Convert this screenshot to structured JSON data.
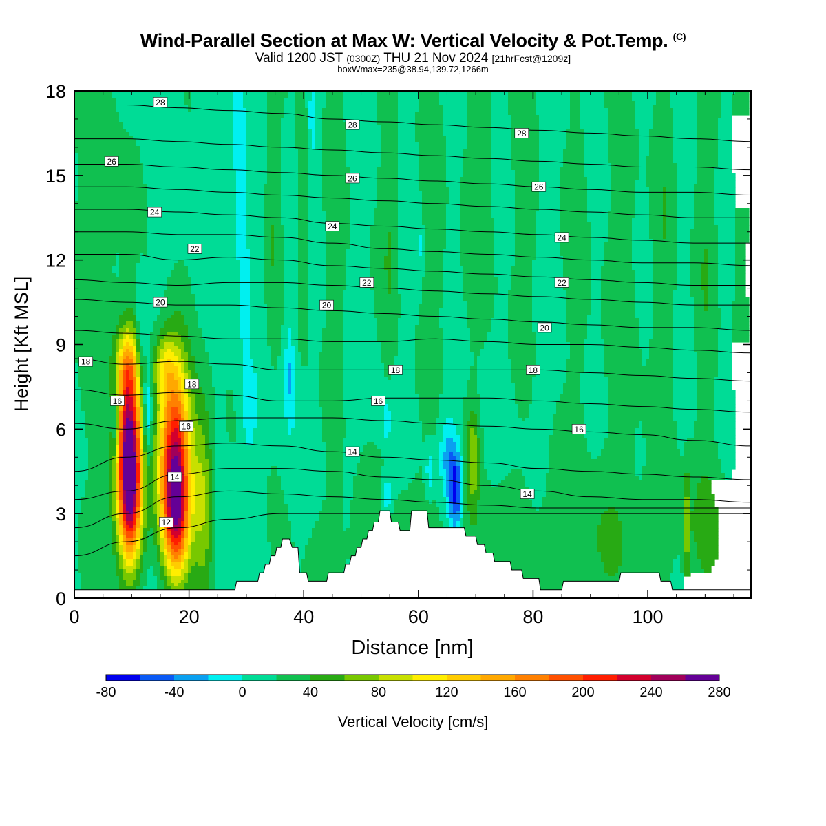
{
  "header": {
    "title": "Wind-Parallel Section at Max W: Vertical Velocity & Pot.Temp.",
    "title_mark": "(C)",
    "subtitle_a": "Valid 1200 JST",
    "subtitle_b": "(0300Z)",
    "subtitle_c": "THU 21 Nov 2024",
    "subtitle_d": "[21hrFcst@1209z]",
    "box_info": "boxWmax=235@38.94,139.72,1266m"
  },
  "chart_data": {
    "type": "heatmap",
    "xlabel": "Distance [nm]",
    "ylabel": "Height [Kft MSL]",
    "xlim": [
      0,
      118
    ],
    "ylim": [
      0,
      18
    ],
    "x_ticks": [
      0,
      20,
      40,
      60,
      80,
      100
    ],
    "y_ticks": [
      0,
      3,
      6,
      9,
      12,
      15,
      18
    ],
    "colorbar": {
      "label": "Vertical Velocity [cm/s]",
      "bounds": [
        -80,
        -60,
        -40,
        -20,
        0,
        20,
        40,
        60,
        80,
        100,
        120,
        140,
        160,
        180,
        200,
        220,
        240,
        260,
        280
      ],
      "tick_labels": [
        "-80",
        "-40",
        "0",
        "40",
        "80",
        "120",
        "160",
        "200",
        "240",
        "280"
      ],
      "colors": [
        "#0000ee",
        "#0a5af5",
        "#0aa0f0",
        "#00f0f0",
        "#00dc96",
        "#10c050",
        "#28aa14",
        "#78c800",
        "#c8e000",
        "#ffee00",
        "#ffcc00",
        "#ffa800",
        "#ff8000",
        "#ff5000",
        "#ff1e00",
        "#d2002d",
        "#a0005a",
        "#640096"
      ]
    },
    "terrain_kft": [
      [
        0,
        0.3
      ],
      [
        28,
        0.3
      ],
      [
        28.3,
        0.6
      ],
      [
        32,
        0.6
      ],
      [
        32.3,
        0.9
      ],
      [
        33,
        0.9
      ],
      [
        33.3,
        1.2
      ],
      [
        34,
        1.2
      ],
      [
        34.3,
        1.5
      ],
      [
        35,
        1.5
      ],
      [
        35.3,
        1.8
      ],
      [
        36,
        1.8
      ],
      [
        36.3,
        2.1
      ],
      [
        37.5,
        2.1
      ],
      [
        38,
        1.8
      ],
      [
        39,
        1.8
      ],
      [
        39.3,
        0.9
      ],
      [
        40.5,
        0.9
      ],
      [
        40.8,
        0.6
      ],
      [
        44,
        0.6
      ],
      [
        44.3,
        0.9
      ],
      [
        47,
        0.9
      ],
      [
        47.3,
        1.2
      ],
      [
        48,
        1.2
      ],
      [
        48.3,
        1.5
      ],
      [
        49,
        1.5
      ],
      [
        49.3,
        1.8
      ],
      [
        50,
        1.8
      ],
      [
        50.3,
        2.1
      ],
      [
        51,
        2.1
      ],
      [
        51.3,
        2.4
      ],
      [
        52,
        2.4
      ],
      [
        52.3,
        2.7
      ],
      [
        53,
        2.7
      ],
      [
        53.3,
        3.1
      ],
      [
        55,
        3.1
      ],
      [
        55.3,
        2.7
      ],
      [
        56.5,
        2.7
      ],
      [
        56.8,
        2.4
      ],
      [
        58.5,
        2.4
      ],
      [
        58.8,
        3.1
      ],
      [
        61.5,
        3.1
      ],
      [
        61.8,
        2.5
      ],
      [
        68,
        2.5
      ],
      [
        68.3,
        2.2
      ],
      [
        70,
        2.2
      ],
      [
        70.3,
        1.9
      ],
      [
        71.5,
        1.9
      ],
      [
        71.8,
        1.6
      ],
      [
        73,
        1.6
      ],
      [
        73.3,
        1.3
      ],
      [
        76,
        1.3
      ],
      [
        76.3,
        1.0
      ],
      [
        78,
        1.0
      ],
      [
        78.3,
        0.7
      ],
      [
        81,
        0.7
      ],
      [
        81.3,
        0.3
      ],
      [
        85,
        0.3
      ],
      [
        85.3,
        0.6
      ],
      [
        95,
        0.6
      ],
      [
        95.3,
        0.9
      ],
      [
        102,
        0.9
      ],
      [
        102.3,
        0.6
      ],
      [
        104,
        0.6
      ],
      [
        104.3,
        0.3
      ],
      [
        118,
        0.3
      ]
    ],
    "theta_contours": [
      {
        "value": 12,
        "heights_kft": [
          1.5,
          2.0,
          2.5,
          2.8,
          3.0,
          3.0,
          3.0,
          3.0,
          3.0,
          3.0,
          3.0,
          3.0,
          3.0,
          3.0
        ]
      },
      {
        "value": 13,
        "heights_kft": [
          2.5,
          3.0,
          3.6,
          3.8,
          3.7,
          3.6,
          3.5,
          3.4,
          3.3,
          3.2,
          3.2,
          3.2,
          3.2,
          3.2
        ]
      },
      {
        "value": 14,
        "heights_kft": [
          3.5,
          3.8,
          4.4,
          4.6,
          4.6,
          4.5,
          4.3,
          4.2,
          4.0,
          3.8,
          3.6,
          3.5,
          3.5,
          3.4
        ]
      },
      {
        "value": 15,
        "heights_kft": [
          4.5,
          5.0,
          5.4,
          5.5,
          5.4,
          5.2,
          5.0,
          4.9,
          4.8,
          4.6,
          4.5,
          4.4,
          4.3,
          4.2
        ]
      },
      {
        "value": 16,
        "heights_kft": [
          6.2,
          6.0,
          6.3,
          6.4,
          6.4,
          6.4,
          6.3,
          6.2,
          6.1,
          6.0,
          5.9,
          5.8,
          5.6,
          5.4
        ]
      },
      {
        "value": 17,
        "heights_kft": [
          7.4,
          7.2,
          7.3,
          7.2,
          7.0,
          7.0,
          7.1,
          7.1,
          7.1,
          7.0,
          6.9,
          6.8,
          6.7,
          6.6
        ]
      },
      {
        "value": 18,
        "heights_kft": [
          8.5,
          8.3,
          8.4,
          8.3,
          8.1,
          8.1,
          8.1,
          8.1,
          8.1,
          8.1,
          8.0,
          7.9,
          7.8,
          7.7
        ]
      },
      {
        "value": 19,
        "heights_kft": [
          9.5,
          9.4,
          9.3,
          9.2,
          9.2,
          9.1,
          9.1,
          9.2,
          9.1,
          9.0,
          9.0,
          8.9,
          8.8,
          8.7
        ]
      },
      {
        "value": 20,
        "heights_kft": [
          10.6,
          10.5,
          10.4,
          10.4,
          10.3,
          10.2,
          10.1,
          10.0,
          9.9,
          9.8,
          9.7,
          9.6,
          9.6,
          9.5
        ]
      },
      {
        "value": 21,
        "heights_kft": [
          11.3,
          11.2,
          11.1,
          11.2,
          11.2,
          11.1,
          11.0,
          10.9,
          10.8,
          10.7,
          10.6,
          10.5,
          10.4,
          10.4
        ]
      },
      {
        "value": 22,
        "heights_kft": [
          12.2,
          12.2,
          12.0,
          12.1,
          12.0,
          11.8,
          11.7,
          11.6,
          11.5,
          11.4,
          11.3,
          11.2,
          11.1,
          11.1
        ]
      },
      {
        "value": 23,
        "heights_kft": [
          13.0,
          13.0,
          12.9,
          12.9,
          12.8,
          12.6,
          12.4,
          12.3,
          12.2,
          12.1,
          12.0,
          11.9,
          11.9,
          11.8
        ]
      },
      {
        "value": 24,
        "heights_kft": [
          13.8,
          13.8,
          13.7,
          13.6,
          13.5,
          13.3,
          13.2,
          13.1,
          13.0,
          12.9,
          12.8,
          12.7,
          12.6,
          12.6
        ]
      },
      {
        "value": 25,
        "heights_kft": [
          14.6,
          14.6,
          14.5,
          14.4,
          14.3,
          14.2,
          14.1,
          14.0,
          13.9,
          13.8,
          13.7,
          13.6,
          13.5,
          13.5
        ]
      },
      {
        "value": 26,
        "heights_kft": [
          15.4,
          15.4,
          15.3,
          15.2,
          15.1,
          15.0,
          14.9,
          14.8,
          14.7,
          14.6,
          14.5,
          14.4,
          14.4,
          14.3
        ]
      },
      {
        "value": 27,
        "heights_kft": [
          16.3,
          16.3,
          16.2,
          16.1,
          16.0,
          15.9,
          15.8,
          15.7,
          15.6,
          15.5,
          15.4,
          15.3,
          15.3,
          15.2
        ]
      },
      {
        "value": 28,
        "heights_kft": [
          17.5,
          17.5,
          17.4,
          17.3,
          17.2,
          17.0,
          16.9,
          16.8,
          16.7,
          16.6,
          16.5,
          16.4,
          16.3,
          16.2
        ]
      }
    ],
    "theta_contour_x_nm": [
      0,
      9,
      18,
      27,
      36,
      45,
      54,
      63,
      72,
      81,
      90,
      99,
      108,
      118
    ],
    "contour_labels": [
      {
        "text": "28",
        "x": 15,
        "y": 17.6
      },
      {
        "text": "28",
        "x": 48.5,
        "y": 16.8
      },
      {
        "text": "28",
        "x": 78,
        "y": 16.5
      },
      {
        "text": "26",
        "x": 6.5,
        "y": 15.5
      },
      {
        "text": "26",
        "x": 48.5,
        "y": 14.9
      },
      {
        "text": "26",
        "x": 81,
        "y": 14.6
      },
      {
        "text": "24",
        "x": 14,
        "y": 13.7
      },
      {
        "text": "24",
        "x": 45,
        "y": 13.2
      },
      {
        "text": "24",
        "x": 85,
        "y": 12.8
      },
      {
        "text": "22",
        "x": 21,
        "y": 12.4
      },
      {
        "text": "22",
        "x": 51,
        "y": 11.2
      },
      {
        "text": "22",
        "x": 85,
        "y": 11.2
      },
      {
        "text": "20",
        "x": 15,
        "y": 10.5
      },
      {
        "text": "20",
        "x": 44,
        "y": 10.4
      },
      {
        "text": "20",
        "x": 82,
        "y": 9.6
      },
      {
        "text": "18",
        "x": 2,
        "y": 8.4
      },
      {
        "text": "18",
        "x": 56,
        "y": 8.1
      },
      {
        "text": "18",
        "x": 80,
        "y": 8.1
      },
      {
        "text": "18",
        "x": 20.5,
        "y": 7.6
      },
      {
        "text": "16",
        "x": 7.5,
        "y": 7.0
      },
      {
        "text": "16",
        "x": 53,
        "y": 7.0
      },
      {
        "text": "16",
        "x": 19.5,
        "y": 6.1
      },
      {
        "text": "16",
        "x": 88,
        "y": 6.0
      },
      {
        "text": "14",
        "x": 48.5,
        "y": 5.2
      },
      {
        "text": "14",
        "x": 17.5,
        "y": 4.3
      },
      {
        "text": "14",
        "x": 79,
        "y": 3.7
      },
      {
        "text": "12",
        "x": 16,
        "y": 2.7
      }
    ],
    "w_features": [
      {
        "x": 9.5,
        "y": 5.5,
        "sx": 1.5,
        "sy": 2.2,
        "amp": 235
      },
      {
        "x": 17.5,
        "y": 5.0,
        "sx": 2.0,
        "sy": 2.4,
        "amp": 220
      },
      {
        "x": 9.8,
        "y": 3.2,
        "sx": 1.4,
        "sy": 1.5,
        "amp": 110
      },
      {
        "x": 17.8,
        "y": 2.8,
        "sx": 1.6,
        "sy": 1.4,
        "amp": 110
      },
      {
        "x": 9.2,
        "y": 8.3,
        "sx": 1.4,
        "sy": 0.8,
        "amp": 60
      },
      {
        "x": 15.5,
        "y": 8.2,
        "sx": 1.4,
        "sy": 0.8,
        "amp": 60
      },
      {
        "x": 22.5,
        "y": 3.5,
        "sx": 1.2,
        "sy": 2.5,
        "amp": 70
      },
      {
        "x": 7.2,
        "y": 6.2,
        "sx": 0.5,
        "sy": 1.0,
        "amp": -60
      },
      {
        "x": 12.8,
        "y": 6.5,
        "sx": 0.6,
        "sy": 1.3,
        "amp": -55
      },
      {
        "x": 11.5,
        "y": 9.0,
        "sx": 0.5,
        "sy": 1.5,
        "amp": -30
      },
      {
        "x": 66.5,
        "y": 3.8,
        "sx": 0.9,
        "sy": 1.1,
        "amp": -90
      },
      {
        "x": 65.0,
        "y": 5.0,
        "sx": 1.0,
        "sy": 1.0,
        "amp": -40
      },
      {
        "x": 69.5,
        "y": 5.0,
        "sx": 0.8,
        "sy": 1.2,
        "amp": 55
      },
      {
        "x": 62.0,
        "y": 4.5,
        "sx": 0.5,
        "sy": 0.6,
        "amp": -35
      },
      {
        "x": 54.5,
        "y": 3.6,
        "sx": 0.8,
        "sy": 0.5,
        "amp": -40
      },
      {
        "x": 54.5,
        "y": 6.3,
        "sx": 0.4,
        "sy": 0.6,
        "amp": -30
      },
      {
        "x": 106.8,
        "y": 2.5,
        "sx": 0.4,
        "sy": 1.4,
        "amp": 55
      },
      {
        "x": 28.5,
        "y": 16.0,
        "sx": 0.7,
        "sy": 2.2,
        "amp": -30
      },
      {
        "x": 29.5,
        "y": 12.5,
        "sx": 0.7,
        "sy": 2.5,
        "amp": -25
      },
      {
        "x": 41.5,
        "y": 17.0,
        "sx": 0.6,
        "sy": 1.2,
        "amp": -30
      },
      {
        "x": 37.5,
        "y": 8.0,
        "sx": 0.6,
        "sy": 1.3,
        "amp": -35
      },
      {
        "x": 30.5,
        "y": 6.5,
        "sx": 0.8,
        "sy": 1.0,
        "amp": -25
      },
      {
        "x": 60.5,
        "y": 12.5,
        "sx": 0.2,
        "sy": 0.6,
        "amp": -30
      },
      {
        "x": 34.5,
        "y": 14.0,
        "sx": 1.0,
        "sy": 4.0,
        "amp": 25
      },
      {
        "x": 40.0,
        "y": 14.0,
        "sx": 1.0,
        "sy": 4.0,
        "amp": 25
      },
      {
        "x": 46.0,
        "y": 13.0,
        "sx": 1.4,
        "sy": 5.0,
        "amp": 22
      },
      {
        "x": 55.0,
        "y": 13.5,
        "sx": 1.2,
        "sy": 4.5,
        "amp": 30
      },
      {
        "x": 63.0,
        "y": 13.0,
        "sx": 1.5,
        "sy": 5.0,
        "amp": 22
      },
      {
        "x": 71.0,
        "y": 14.0,
        "sx": 2.0,
        "sy": 4.5,
        "amp": 22
      },
      {
        "x": 79.0,
        "y": 14.0,
        "sx": 1.5,
        "sy": 4.5,
        "amp": 22
      },
      {
        "x": 88.0,
        "y": 12.0,
        "sx": 1.5,
        "sy": 5.5,
        "amp": 22
      },
      {
        "x": 96.0,
        "y": 11.0,
        "sx": 2.0,
        "sy": 6.0,
        "amp": 22
      },
      {
        "x": 103.0,
        "y": 12.0,
        "sx": 1.5,
        "sy": 6.0,
        "amp": 22
      },
      {
        "x": 110.0,
        "y": 13.0,
        "sx": 1.5,
        "sy": 6.0,
        "amp": 22
      },
      {
        "x": 116.0,
        "y": 13.0,
        "sx": 1.0,
        "sy": 6.0,
        "amp": 22
      },
      {
        "x": 4.0,
        "y": 13.5,
        "sx": 4.0,
        "sy": 5.0,
        "amp": 22
      },
      {
        "x": 8.0,
        "y": 3.5,
        "sx": 3.0,
        "sy": 2.5,
        "amp": 22
      },
      {
        "x": 57.0,
        "y": 1.5,
        "sx": 12.0,
        "sy": 2.0,
        "amp": 22
      },
      {
        "x": 90.0,
        "y": 2.0,
        "sx": 12.0,
        "sy": 2.0,
        "amp": 22
      },
      {
        "x": 112.0,
        "y": 2.5,
        "sx": 4.0,
        "sy": 2.0,
        "amp": 22
      }
    ]
  }
}
